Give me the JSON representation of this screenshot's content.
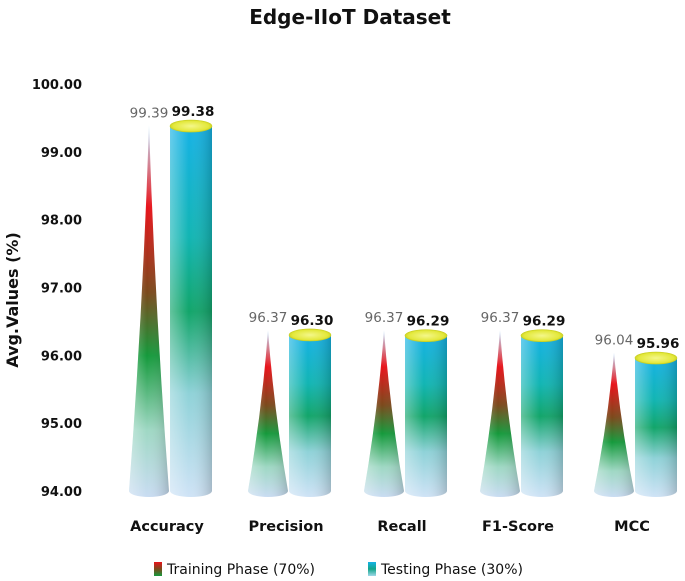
{
  "chart_data": {
    "type": "bar",
    "title": "Edge-IIoT Dataset",
    "xlabel": "",
    "ylabel": "Avg.Values (%)",
    "ylim": [
      94,
      100
    ],
    "yticks": [
      "94.00",
      "95.00",
      "96.00",
      "97.00",
      "98.00",
      "99.00",
      "100.00"
    ],
    "categories": [
      "Accuracy",
      "Precision",
      "Recall",
      "F1-Score",
      "MCC"
    ],
    "series": [
      {
        "name": "Training Phase (70%)",
        "shape": "cone",
        "values": [
          99.39,
          96.37,
          96.37,
          96.37,
          96.04
        ],
        "labels": [
          "99.39",
          "96.37",
          "96.37",
          "96.37",
          "96.04"
        ]
      },
      {
        "name": "Testing Phase (30%)",
        "shape": "cylinder",
        "values": [
          99.38,
          96.3,
          96.29,
          96.29,
          95.96
        ],
        "labels": [
          "99.38",
          "96.30",
          "96.29",
          "96.29",
          "95.96"
        ]
      }
    ],
    "grid": false,
    "legend": "bottom"
  }
}
